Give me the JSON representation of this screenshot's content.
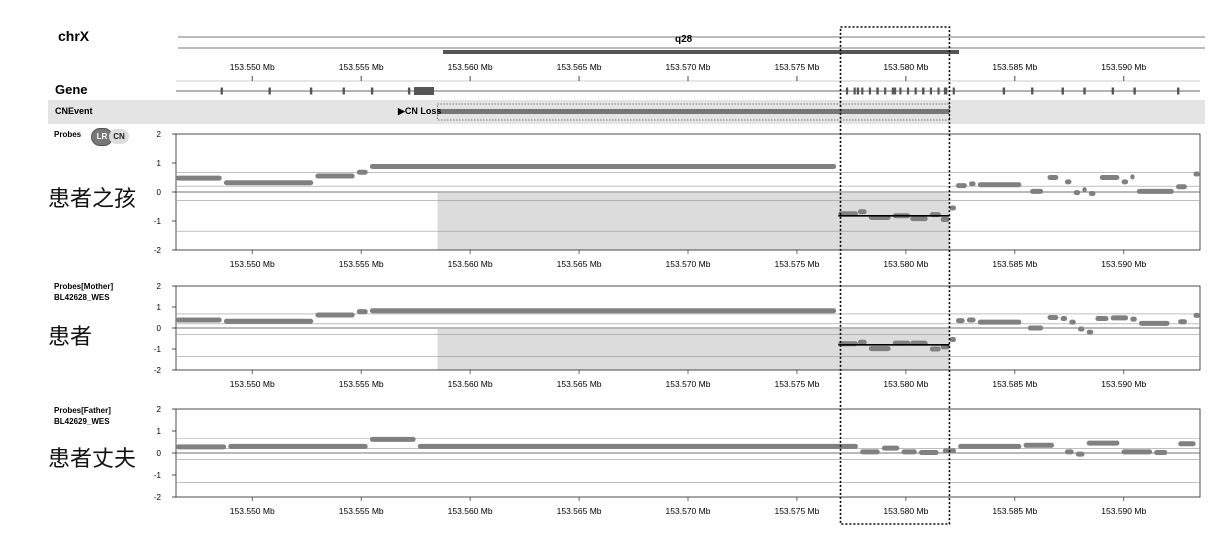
{
  "chromosome": "chrX",
  "band": "q28",
  "gene_track_label": "Gene",
  "cnevent_track_label": "CNEvent",
  "cnevent_label": "▶CN Loss",
  "probes_label": "Probes",
  "badge_lr": "LR",
  "badge_cn": "CN",
  "colors": {
    "probe": "#808080",
    "shade": "#dcdcdc",
    "track_bg": "#e4e4e4",
    "gene": "#555555",
    "box": "#000000"
  },
  "chart_data": {
    "type": "scatter",
    "x_unit": "Mb",
    "x_range": [
      153.5465,
      153.5935
    ],
    "x_ticks": [
      153.55,
      153.555,
      153.56,
      153.565,
      153.57,
      153.575,
      153.58,
      153.585,
      153.59
    ],
    "x_tick_labels": [
      "153.550 Mb",
      "153.555 Mb",
      "153.560 Mb",
      "153.565 Mb",
      "153.570 Mb",
      "153.575 Mb",
      "153.580 Mb",
      "153.585 Mb",
      "153.590 Mb"
    ],
    "cn_loss_region": [
      153.5585,
      153.582
    ],
    "highlight_region": [
      153.577,
      153.582
    ],
    "gene_exons": [
      153.5486,
      153.5508,
      153.5527,
      153.5542,
      153.5555,
      153.5572,
      153.5778,
      153.5787,
      153.5795,
      153.5808,
      153.5818,
      153.5845,
      153.5858,
      153.5872,
      153.5882,
      153.5895,
      153.5905,
      153.5925
    ],
    "panels": [
      {
        "name_lines": [],
        "annotation": "患者之孩",
        "y_range": [
          -2,
          2
        ],
        "y_ticks": [
          2,
          1,
          0,
          -1,
          -2
        ],
        "segments": [
          {
            "x0": 153.5465,
            "x1": 153.5486,
            "y": 0.48
          },
          {
            "x0": 153.5487,
            "x1": 153.5528,
            "y": 0.32
          },
          {
            "x0": 153.5529,
            "x1": 153.5547,
            "y": 0.55
          },
          {
            "x0": 153.5548,
            "x1": 153.5553,
            "y": 0.68
          },
          {
            "x0": 153.5554,
            "x1": 153.5768,
            "y": 0.88
          },
          {
            "x0": 153.5769,
            "x1": 153.5778,
            "y": -0.75
          },
          {
            "x0": 153.5778,
            "x1": 153.5782,
            "y": -0.68
          },
          {
            "x0": 153.5783,
            "x1": 153.5793,
            "y": -0.88
          },
          {
            "x0": 153.5794,
            "x1": 153.5802,
            "y": -0.82
          },
          {
            "x0": 153.5802,
            "x1": 153.581,
            "y": -0.92
          },
          {
            "x0": 153.5811,
            "x1": 153.5816,
            "y": -0.78
          },
          {
            "x0": 153.5816,
            "x1": 153.582,
            "y": -0.95
          },
          {
            "x0": 153.582,
            "x1": 153.5823,
            "y": -0.55
          },
          {
            "x0": 153.5823,
            "x1": 153.5828,
            "y": 0.22
          },
          {
            "x0": 153.5829,
            "x1": 153.5832,
            "y": 0.28
          },
          {
            "x0": 153.5833,
            "x1": 153.5853,
            "y": 0.25
          },
          {
            "x0": 153.5857,
            "x1": 153.5863,
            "y": 0.02
          },
          {
            "x0": 153.5865,
            "x1": 153.587,
            "y": 0.5
          },
          {
            "x0": 153.5873,
            "x1": 153.5876,
            "y": 0.35
          },
          {
            "x0": 153.5877,
            "x1": 153.588,
            "y": -0.02
          },
          {
            "x0": 153.5881,
            "x1": 153.5883,
            "y": 0.08
          },
          {
            "x0": 153.5884,
            "x1": 153.5887,
            "y": -0.05
          },
          {
            "x0": 153.5889,
            "x1": 153.5898,
            "y": 0.5
          },
          {
            "x0": 153.5899,
            "x1": 153.5902,
            "y": 0.35
          },
          {
            "x0": 153.5903,
            "x1": 153.5905,
            "y": 0.52
          },
          {
            "x0": 153.5906,
            "x1": 153.5923,
            "y": 0.02
          },
          {
            "x0": 153.5924,
            "x1": 153.5929,
            "y": 0.18
          },
          {
            "x0": 153.5932,
            "x1": 153.5935,
            "y": 0.62
          }
        ],
        "cn_line": [
          {
            "x0": 153.5769,
            "x1": 153.582,
            "y": -0.82
          }
        ]
      },
      {
        "name_lines": [
          "Probes[Mother]",
          "BL42628_WES"
        ],
        "annotation": "患者",
        "y_range": [
          -2,
          2
        ],
        "y_ticks": [
          2,
          1,
          0,
          -1,
          -2
        ],
        "segments": [
          {
            "x0": 153.5465,
            "x1": 153.5486,
            "y": 0.38
          },
          {
            "x0": 153.5487,
            "x1": 153.5528,
            "y": 0.32
          },
          {
            "x0": 153.5529,
            "x1": 153.5547,
            "y": 0.62
          },
          {
            "x0": 153.5548,
            "x1": 153.5553,
            "y": 0.78
          },
          {
            "x0": 153.5554,
            "x1": 153.5768,
            "y": 0.82
          },
          {
            "x0": 153.5769,
            "x1": 153.5778,
            "y": -0.75
          },
          {
            "x0": 153.5778,
            "x1": 153.5782,
            "y": -0.68
          },
          {
            "x0": 153.5783,
            "x1": 153.5793,
            "y": -0.98
          },
          {
            "x0": 153.5794,
            "x1": 153.5802,
            "y": -0.72
          },
          {
            "x0": 153.5802,
            "x1": 153.581,
            "y": -0.72
          },
          {
            "x0": 153.5811,
            "x1": 153.5816,
            "y": -1.0
          },
          {
            "x0": 153.5816,
            "x1": 153.582,
            "y": -0.9
          },
          {
            "x0": 153.582,
            "x1": 153.5823,
            "y": -0.55
          },
          {
            "x0": 153.5823,
            "x1": 153.5827,
            "y": 0.35
          },
          {
            "x0": 153.5828,
            "x1": 153.5832,
            "y": 0.38
          },
          {
            "x0": 153.5833,
            "x1": 153.5853,
            "y": 0.28
          },
          {
            "x0": 153.5856,
            "x1": 153.5863,
            "y": 0.0
          },
          {
            "x0": 153.5865,
            "x1": 153.587,
            "y": 0.5
          },
          {
            "x0": 153.5871,
            "x1": 153.5874,
            "y": 0.45
          },
          {
            "x0": 153.5875,
            "x1": 153.5878,
            "y": 0.28
          },
          {
            "x0": 153.5879,
            "x1": 153.5882,
            "y": -0.05
          },
          {
            "x0": 153.5883,
            "x1": 153.5886,
            "y": -0.2
          },
          {
            "x0": 153.5887,
            "x1": 153.5893,
            "y": 0.45
          },
          {
            "x0": 153.5894,
            "x1": 153.5902,
            "y": 0.48
          },
          {
            "x0": 153.5903,
            "x1": 153.5906,
            "y": 0.42
          },
          {
            "x0": 153.5907,
            "x1": 153.5921,
            "y": 0.22
          },
          {
            "x0": 153.5925,
            "x1": 153.5929,
            "y": 0.3
          },
          {
            "x0": 153.5932,
            "x1": 153.5935,
            "y": 0.6
          }
        ],
        "cn_line": [
          {
            "x0": 153.5769,
            "x1": 153.582,
            "y": -0.8
          }
        ]
      },
      {
        "name_lines": [
          "Probes[Father]",
          "BL42629_WES"
        ],
        "annotation": "患者丈夫",
        "y_range": [
          -2,
          2
        ],
        "y_ticks": [
          2,
          1,
          0,
          -1,
          -2
        ],
        "segments": [
          {
            "x0": 153.5465,
            "x1": 153.5488,
            "y": 0.28
          },
          {
            "x0": 153.5489,
            "x1": 153.5553,
            "y": 0.3
          },
          {
            "x0": 153.5554,
            "x1": 153.5575,
            "y": 0.62
          },
          {
            "x0": 153.5576,
            "x1": 153.5778,
            "y": 0.3
          },
          {
            "x0": 153.5779,
            "x1": 153.5788,
            "y": 0.05
          },
          {
            "x0": 153.5789,
            "x1": 153.5797,
            "y": 0.22
          },
          {
            "x0": 153.5798,
            "x1": 153.5805,
            "y": 0.05
          },
          {
            "x0": 153.5806,
            "x1": 153.5815,
            "y": 0.02
          },
          {
            "x0": 153.5817,
            "x1": 153.5823,
            "y": 0.1
          },
          {
            "x0": 153.5824,
            "x1": 153.5853,
            "y": 0.3
          },
          {
            "x0": 153.5854,
            "x1": 153.5868,
            "y": 0.35
          },
          {
            "x0": 153.5873,
            "x1": 153.5877,
            "y": 0.05
          },
          {
            "x0": 153.5878,
            "x1": 153.5882,
            "y": -0.05
          },
          {
            "x0": 153.5883,
            "x1": 153.5898,
            "y": 0.45
          },
          {
            "x0": 153.5899,
            "x1": 153.5913,
            "y": 0.05
          },
          {
            "x0": 153.5914,
            "x1": 153.592,
            "y": 0.02
          },
          {
            "x0": 153.5925,
            "x1": 153.5933,
            "y": 0.42
          }
        ],
        "cn_line": []
      }
    ]
  }
}
